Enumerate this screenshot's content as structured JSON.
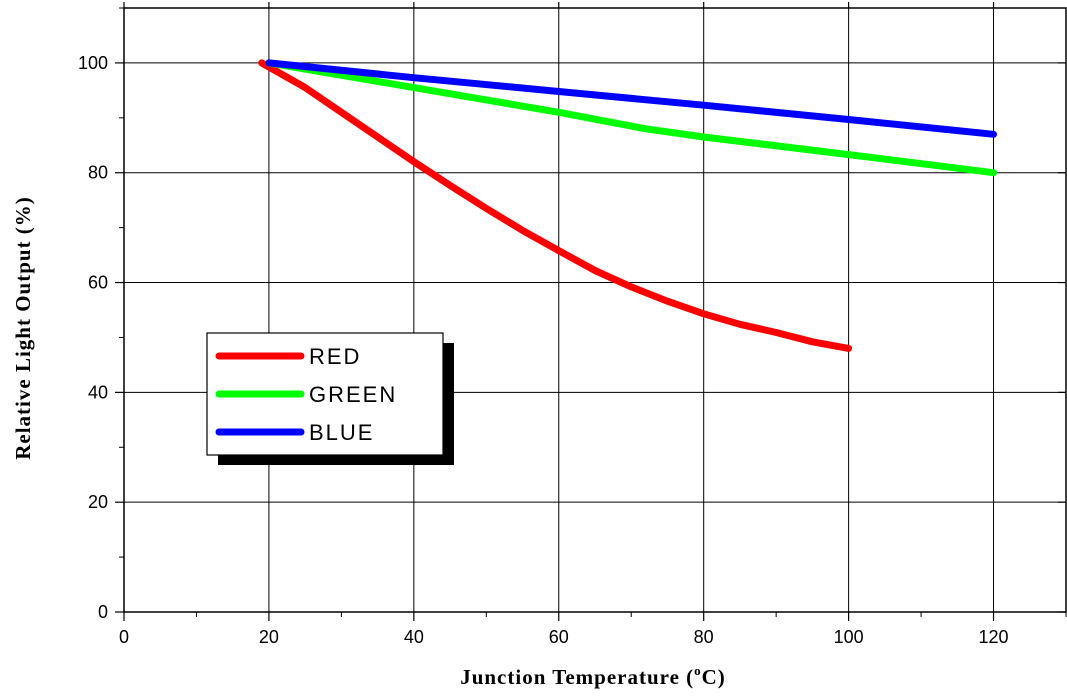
{
  "chart_data": {
    "type": "line",
    "xlabel": "Junction Temperature (",
    "xlabel_sup": "o",
    "xlabel_suffix": "C)",
    "ylabel": "Relative Light Output (%)",
    "xlim": [
      0,
      130
    ],
    "ylim": [
      0,
      110
    ],
    "xticks": [
      0,
      20,
      40,
      60,
      80,
      100,
      120
    ],
    "yticks": [
      0,
      20,
      40,
      60,
      80,
      100
    ],
    "grid": true,
    "legend_position": "left-middle",
    "series": [
      {
        "name": "RED",
        "color": "#ff0000",
        "x": [
          19,
          25,
          30,
          35,
          40,
          45,
          50,
          55,
          60,
          65,
          70,
          75,
          80,
          85,
          90,
          95,
          100
        ],
        "y": [
          100,
          95.5,
          91,
          86.5,
          82,
          77.7,
          73.5,
          69.5,
          65.8,
          62.2,
          59.2,
          56.6,
          54.3,
          52.4,
          50.9,
          49.2,
          48
        ]
      },
      {
        "name": "GREEN",
        "color": "#00ff00",
        "x": [
          20,
          40,
          60,
          72,
          80,
          100,
          120
        ],
        "y": [
          100,
          95.5,
          91,
          88,
          86.5,
          83.3,
          80
        ]
      },
      {
        "name": "BLUE",
        "color": "#0000ff",
        "x": [
          20,
          40,
          60,
          80,
          100,
          120
        ],
        "y": [
          100,
          97.3,
          94.8,
          92.3,
          89.7,
          87
        ]
      }
    ]
  }
}
